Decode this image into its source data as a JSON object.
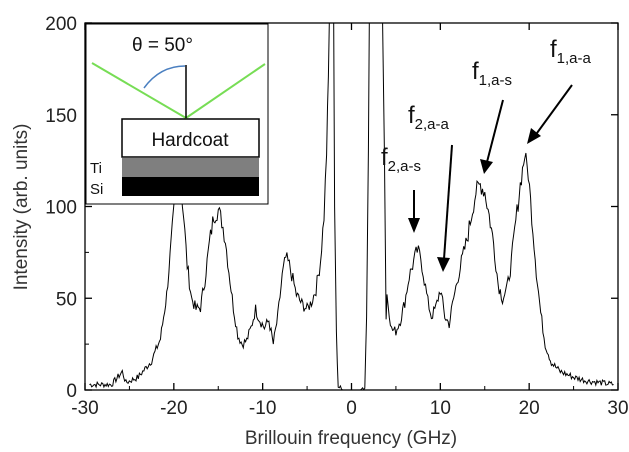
{
  "chart_data": {
    "type": "line",
    "title": "",
    "xlabel": "Brillouin frequency (GHz)",
    "ylabel": "Intensity (arb. units)",
    "xlim": [
      -30,
      30
    ],
    "ylim": [
      0,
      200
    ],
    "x_ticks": [
      -30,
      -20,
      -10,
      0,
      10,
      20,
      30
    ],
    "y_ticks": [
      0,
      50,
      100,
      150,
      200
    ],
    "grid": false,
    "series": [
      {
        "color": "#000000",
        "points": [
          [
            -29.5,
            3
          ],
          [
            -27,
            3
          ],
          [
            -25.8,
            10
          ],
          [
            -25.4,
            4
          ],
          [
            -24,
            7
          ],
          [
            -22.5,
            16
          ],
          [
            -21.5,
            28
          ],
          [
            -20.8,
            52
          ],
          [
            -20.3,
            80
          ],
          [
            -19.8,
            108
          ],
          [
            -19.3,
            118
          ],
          [
            -18.9,
            95
          ],
          [
            -18.5,
            68
          ],
          [
            -18,
            50
          ],
          [
            -17.5,
            44
          ],
          [
            -17,
            45
          ],
          [
            -16.5,
            60
          ],
          [
            -16,
            80
          ],
          [
            -15.5,
            95
          ],
          [
            -15,
            98
          ],
          [
            -14.6,
            92
          ],
          [
            -14.2,
            82
          ],
          [
            -13.8,
            65
          ],
          [
            -13.3,
            45
          ],
          [
            -12.8,
            30
          ],
          [
            -12.3,
            25
          ],
          [
            -11.8,
            27
          ],
          [
            -11.3,
            34
          ],
          [
            -10.8,
            44
          ],
          [
            -10.3,
            38
          ],
          [
            -9.8,
            34
          ],
          [
            -9.3,
            38
          ],
          [
            -8.8,
            25
          ],
          [
            -8.3,
            40
          ],
          [
            -7.8,
            62
          ],
          [
            -7.4,
            72
          ],
          [
            -7.0,
            68
          ],
          [
            -6.6,
            60
          ],
          [
            -6.2,
            52
          ],
          [
            -5.6,
            47
          ],
          [
            -5.0,
            44
          ],
          [
            -4.5,
            48
          ],
          [
            -4.0,
            55
          ],
          [
            -3.5,
            70
          ],
          [
            -3.1,
            95
          ],
          [
            -2.8,
            130
          ],
          [
            -2.6,
            170
          ],
          [
            -2.5,
            200
          ],
          [
            -2.3,
            200
          ],
          [
            -2.0,
            200
          ],
          [
            -1.9,
            100
          ],
          [
            -1.7,
            30
          ],
          [
            -1.5,
            2
          ],
          [
            -1.0,
            0
          ],
          [
            0,
            0
          ],
          [
            1.0,
            0
          ],
          [
            1.5,
            2
          ],
          [
            1.7,
            40
          ],
          [
            1.9,
            130
          ],
          [
            2.0,
            200
          ],
          [
            3.0,
            200
          ],
          [
            3.5,
            200
          ],
          [
            3.7,
            130
          ],
          [
            3.9,
            40
          ],
          [
            4.0,
            52
          ],
          [
            4.5,
            33
          ],
          [
            5.0,
            32
          ],
          [
            5.5,
            38
          ],
          [
            6.0,
            48
          ],
          [
            6.5,
            62
          ],
          [
            7.0,
            70
          ],
          [
            7.4,
            76
          ],
          [
            7.8,
            72
          ],
          [
            8.2,
            60
          ],
          [
            8.6,
            48
          ],
          [
            9.0,
            40
          ],
          [
            9.5,
            45
          ],
          [
            10.0,
            55
          ],
          [
            10.5,
            40
          ],
          [
            11.0,
            36
          ],
          [
            11.5,
            50
          ],
          [
            12.0,
            62
          ],
          [
            12.5,
            72
          ],
          [
            13.0,
            82
          ],
          [
            13.5,
            95
          ],
          [
            14.0,
            108
          ],
          [
            14.5,
            112
          ],
          [
            15.0,
            108
          ],
          [
            15.5,
            95
          ],
          [
            16.0,
            80
          ],
          [
            16.5,
            58
          ],
          [
            17.0,
            50
          ],
          [
            17.5,
            55
          ],
          [
            18.0,
            70
          ],
          [
            18.5,
            92
          ],
          [
            19.0,
            112
          ],
          [
            19.5,
            128
          ],
          [
            19.9,
            118
          ],
          [
            20.3,
            95
          ],
          [
            20.8,
            65
          ],
          [
            21.3,
            42
          ],
          [
            21.8,
            25
          ],
          [
            22.5,
            15
          ],
          [
            23.5,
            10
          ],
          [
            25,
            7
          ],
          [
            26.5,
            5
          ],
          [
            28,
            4
          ],
          [
            29.5,
            3
          ]
        ]
      }
    ],
    "annotations": [
      {
        "label": "f",
        "sub": "2,a-s",
        "x": 7.3,
        "y": 75
      },
      {
        "label": "f",
        "sub": "2,a-a",
        "x": 10.0,
        "y": 57
      },
      {
        "label": "f",
        "sub": "1,a-s",
        "x": 14.5,
        "y": 112
      },
      {
        "label": "f",
        "sub": "1,a-a",
        "x": 19.5,
        "y": 128
      }
    ]
  },
  "inset": {
    "angle_label": "θ = 50°",
    "layer_top": "Hardcoat",
    "label_ti": "Ti",
    "label_si": "Si",
    "beam_color": "#77dd55",
    "arc_color": "#4a7fc0",
    "ti_color": "#7f7f7f",
    "si_color": "#000000"
  }
}
